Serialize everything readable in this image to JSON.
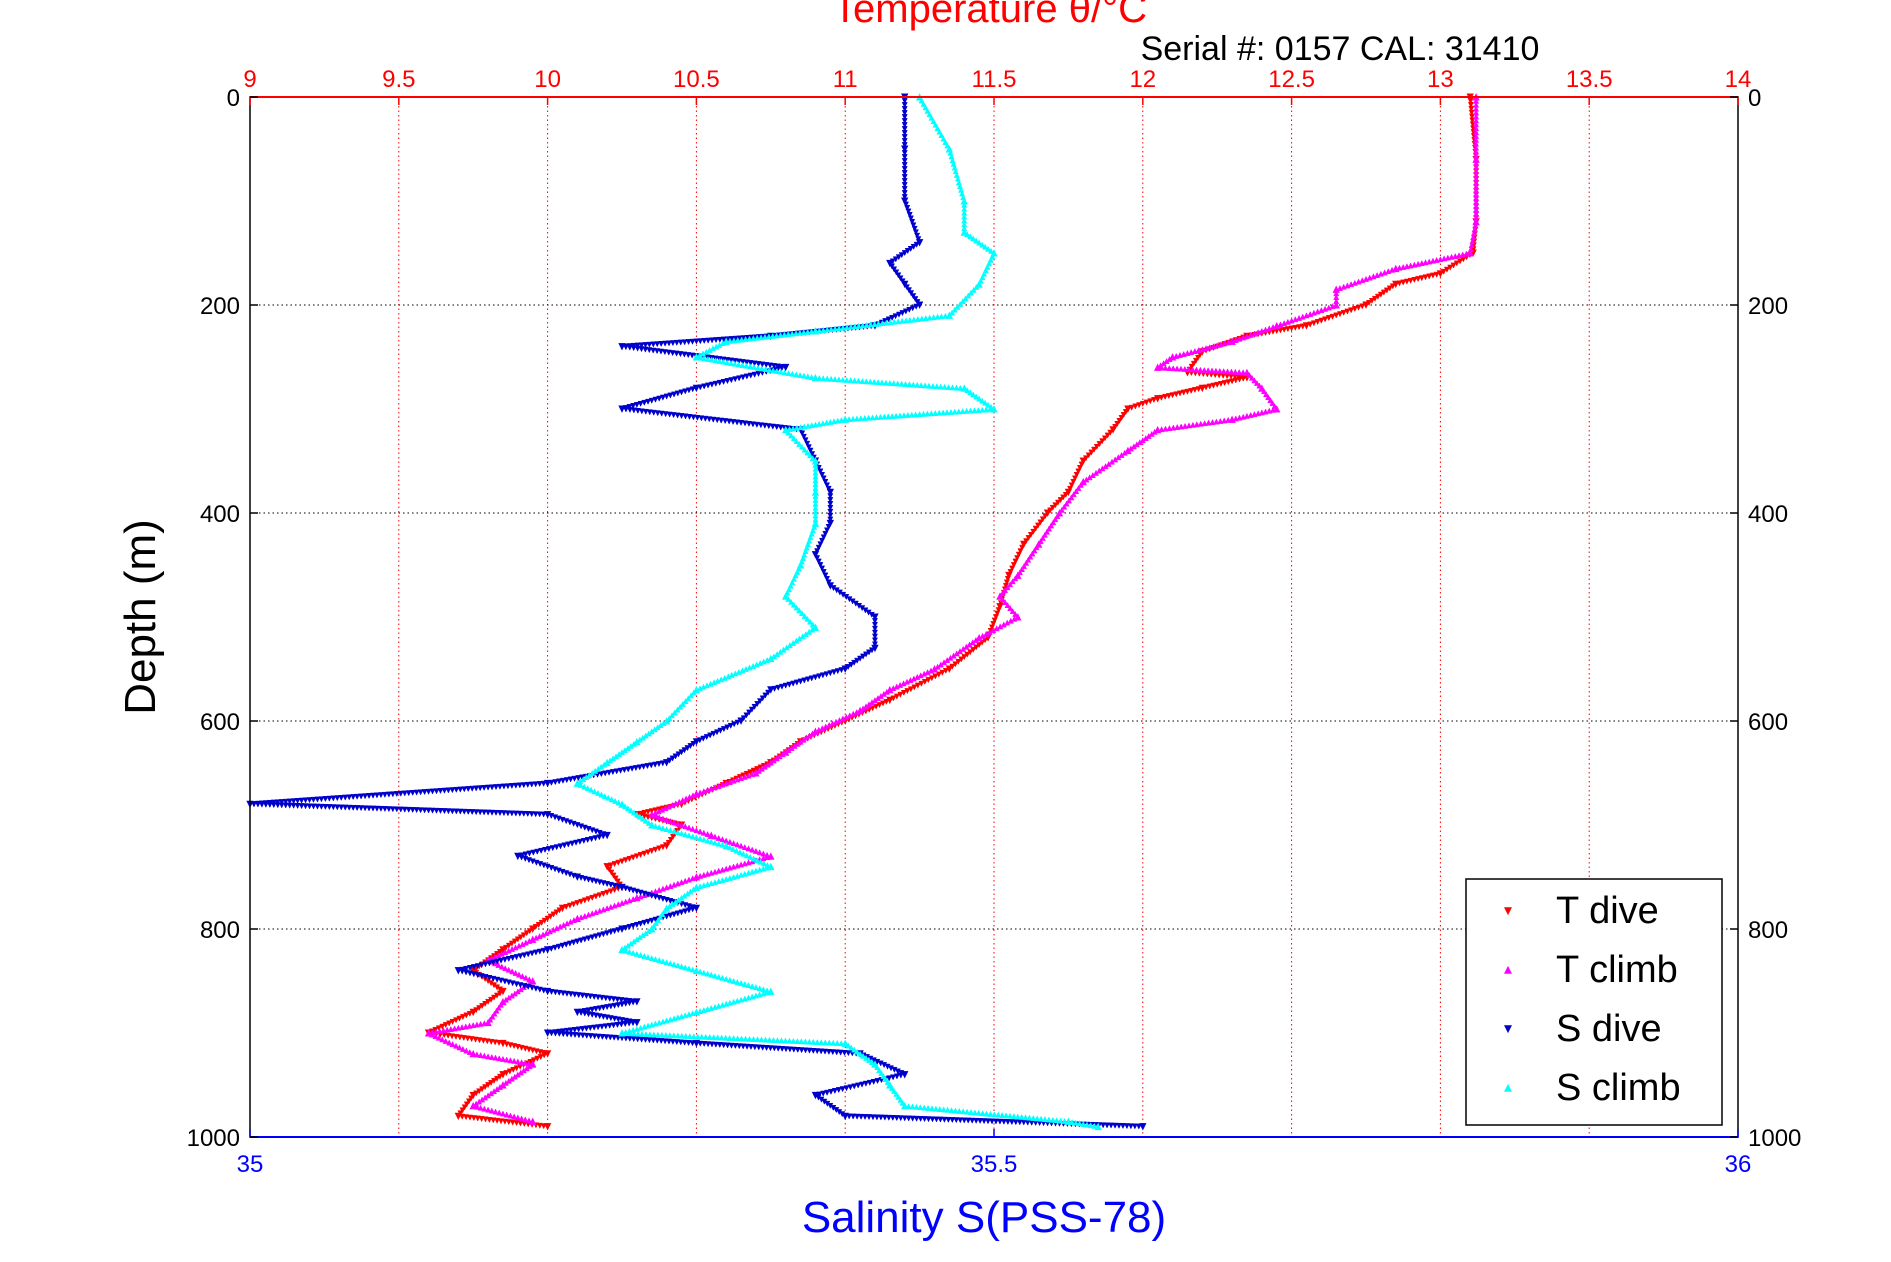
{
  "colors": {
    "temperature_axis": "#ff0000",
    "salinity_axis": "#0000ff",
    "depth_axis": "#000000",
    "t_dive": "#ff0000",
    "t_climb": "#ff00ff",
    "s_dive": "#0000cc",
    "s_climb": "#00ffff",
    "grid_temperature": "#ff0000",
    "grid_depth": "#000000"
  },
  "chart_data": {
    "type": "scatter",
    "title": "Temperature θ/°C",
    "subtitle": "Serial #: 0157  CAL: 31410",
    "ylabel": "Depth (m)",
    "xlabel": "Salinity S(PSS-78)",
    "ylim": [
      0,
      1000
    ],
    "y_reversed": true,
    "y_ticks": [
      "0",
      "200",
      "400",
      "600",
      "800",
      "1000"
    ],
    "temperature_axis": {
      "position": "top",
      "range": [
        9,
        14
      ],
      "ticks": [
        "9",
        "9.5",
        "10",
        "10.5",
        "11",
        "11.5",
        "12",
        "12.5",
        "13",
        "13.5",
        "14"
      ]
    },
    "salinity_axis": {
      "position": "bottom",
      "range": [
        35,
        36
      ],
      "ticks": [
        "35",
        "35.5",
        "36"
      ]
    },
    "grid": {
      "vertical": true,
      "horizontal": true,
      "style": "dotted"
    },
    "legend_position": "bottom-right",
    "series": [
      {
        "name": "T dive",
        "axis": "temperature",
        "marker": "triangle-down",
        "points": [
          [
            13.1,
            0
          ],
          [
            13.12,
            60
          ],
          [
            13.12,
            120
          ],
          [
            13.11,
            150
          ],
          [
            13.0,
            170
          ],
          [
            12.85,
            180
          ],
          [
            12.75,
            200
          ],
          [
            12.55,
            220
          ],
          [
            12.35,
            230
          ],
          [
            12.2,
            245
          ],
          [
            12.15,
            265
          ],
          [
            12.35,
            270
          ],
          [
            12.2,
            280
          ],
          [
            12.05,
            290
          ],
          [
            11.95,
            300
          ],
          [
            11.9,
            320
          ],
          [
            11.8,
            350
          ],
          [
            11.75,
            380
          ],
          [
            11.68,
            400
          ],
          [
            11.6,
            430
          ],
          [
            11.55,
            460
          ],
          [
            11.52,
            490
          ],
          [
            11.48,
            520
          ],
          [
            11.35,
            550
          ],
          [
            11.15,
            580
          ],
          [
            11.0,
            600
          ],
          [
            10.85,
            620
          ],
          [
            10.75,
            640
          ],
          [
            10.6,
            660
          ],
          [
            10.45,
            680
          ],
          [
            10.3,
            690
          ],
          [
            10.45,
            700
          ],
          [
            10.4,
            720
          ],
          [
            10.2,
            740
          ],
          [
            10.25,
            760
          ],
          [
            10.05,
            780
          ],
          [
            9.95,
            800
          ],
          [
            9.85,
            820
          ],
          [
            9.75,
            840
          ],
          [
            9.85,
            860
          ],
          [
            9.75,
            880
          ],
          [
            9.6,
            900
          ],
          [
            9.85,
            910
          ],
          [
            10.0,
            920
          ],
          [
            9.85,
            940
          ],
          [
            9.75,
            960
          ],
          [
            9.7,
            980
          ],
          [
            10.0,
            990
          ]
        ]
      },
      {
        "name": "T climb",
        "axis": "temperature",
        "marker": "triangle-up",
        "points": [
          [
            13.12,
            0
          ],
          [
            13.12,
            60
          ],
          [
            13.12,
            120
          ],
          [
            13.1,
            150
          ],
          [
            12.85,
            165
          ],
          [
            12.65,
            185
          ],
          [
            12.65,
            200
          ],
          [
            12.45,
            220
          ],
          [
            12.3,
            235
          ],
          [
            12.1,
            250
          ],
          [
            12.05,
            260
          ],
          [
            12.35,
            265
          ],
          [
            12.4,
            280
          ],
          [
            12.45,
            300
          ],
          [
            12.3,
            310
          ],
          [
            12.05,
            320
          ],
          [
            11.95,
            340
          ],
          [
            11.8,
            370
          ],
          [
            11.72,
            400
          ],
          [
            11.65,
            430
          ],
          [
            11.58,
            460
          ],
          [
            11.52,
            480
          ],
          [
            11.58,
            500
          ],
          [
            11.45,
            520
          ],
          [
            11.3,
            550
          ],
          [
            11.15,
            570
          ],
          [
            11.05,
            590
          ],
          [
            10.9,
            610
          ],
          [
            10.8,
            630
          ],
          [
            10.7,
            650
          ],
          [
            10.5,
            670
          ],
          [
            10.35,
            690
          ],
          [
            10.55,
            710
          ],
          [
            10.75,
            730
          ],
          [
            10.5,
            750
          ],
          [
            10.3,
            770
          ],
          [
            10.1,
            790
          ],
          [
            9.95,
            810
          ],
          [
            9.8,
            830
          ],
          [
            9.95,
            850
          ],
          [
            9.85,
            870
          ],
          [
            9.8,
            890
          ],
          [
            9.6,
            900
          ],
          [
            9.75,
            920
          ],
          [
            9.95,
            930
          ],
          [
            9.85,
            950
          ],
          [
            9.75,
            970
          ],
          [
            9.95,
            985
          ]
        ]
      },
      {
        "name": "S dive",
        "axis": "salinity",
        "marker": "triangle-down",
        "points": [
          [
            35.44,
            0
          ],
          [
            35.44,
            50
          ],
          [
            35.44,
            100
          ],
          [
            35.45,
            140
          ],
          [
            35.43,
            160
          ],
          [
            35.44,
            180
          ],
          [
            35.45,
            200
          ],
          [
            35.42,
            220
          ],
          [
            35.35,
            230
          ],
          [
            35.25,
            240
          ],
          [
            35.36,
            260
          ],
          [
            35.3,
            280
          ],
          [
            35.25,
            300
          ],
          [
            35.37,
            320
          ],
          [
            35.38,
            350
          ],
          [
            35.39,
            380
          ],
          [
            35.39,
            410
          ],
          [
            35.38,
            440
          ],
          [
            35.39,
            470
          ],
          [
            35.42,
            500
          ],
          [
            35.42,
            530
          ],
          [
            35.4,
            550
          ],
          [
            35.35,
            570
          ],
          [
            35.33,
            600
          ],
          [
            35.3,
            620
          ],
          [
            35.28,
            640
          ],
          [
            35.2,
            660
          ],
          [
            35.0,
            680
          ],
          [
            35.2,
            690
          ],
          [
            35.24,
            710
          ],
          [
            35.18,
            730
          ],
          [
            35.22,
            750
          ],
          [
            35.25,
            760
          ],
          [
            35.3,
            780
          ],
          [
            35.25,
            800
          ],
          [
            35.2,
            820
          ],
          [
            35.14,
            840
          ],
          [
            35.2,
            860
          ],
          [
            35.26,
            870
          ],
          [
            35.22,
            880
          ],
          [
            35.26,
            890
          ],
          [
            35.2,
            900
          ],
          [
            35.3,
            910
          ],
          [
            35.41,
            920
          ],
          [
            35.44,
            940
          ],
          [
            35.38,
            960
          ],
          [
            35.4,
            980
          ],
          [
            35.6,
            990
          ]
        ]
      },
      {
        "name": "S climb",
        "axis": "salinity",
        "marker": "triangle-up",
        "points": [
          [
            35.45,
            0
          ],
          [
            35.47,
            50
          ],
          [
            35.48,
            100
          ],
          [
            35.48,
            130
          ],
          [
            35.5,
            150
          ],
          [
            35.49,
            180
          ],
          [
            35.47,
            210
          ],
          [
            35.38,
            225
          ],
          [
            35.32,
            235
          ],
          [
            35.3,
            250
          ],
          [
            35.38,
            270
          ],
          [
            35.48,
            280
          ],
          [
            35.5,
            300
          ],
          [
            35.4,
            310
          ],
          [
            35.36,
            320
          ],
          [
            35.38,
            350
          ],
          [
            35.38,
            380
          ],
          [
            35.38,
            410
          ],
          [
            35.37,
            450
          ],
          [
            35.36,
            480
          ],
          [
            35.38,
            510
          ],
          [
            35.35,
            540
          ],
          [
            35.3,
            570
          ],
          [
            35.28,
            600
          ],
          [
            35.26,
            620
          ],
          [
            35.24,
            640
          ],
          [
            35.22,
            660
          ],
          [
            35.25,
            680
          ],
          [
            35.27,
            700
          ],
          [
            35.32,
            720
          ],
          [
            35.35,
            740
          ],
          [
            35.3,
            760
          ],
          [
            35.28,
            780
          ],
          [
            35.27,
            800
          ],
          [
            35.25,
            820
          ],
          [
            35.3,
            840
          ],
          [
            35.35,
            860
          ],
          [
            35.3,
            880
          ],
          [
            35.25,
            900
          ],
          [
            35.4,
            910
          ],
          [
            35.42,
            930
          ],
          [
            35.43,
            950
          ],
          [
            35.44,
            970
          ],
          [
            35.55,
            985
          ],
          [
            35.57,
            990
          ]
        ]
      }
    ]
  }
}
